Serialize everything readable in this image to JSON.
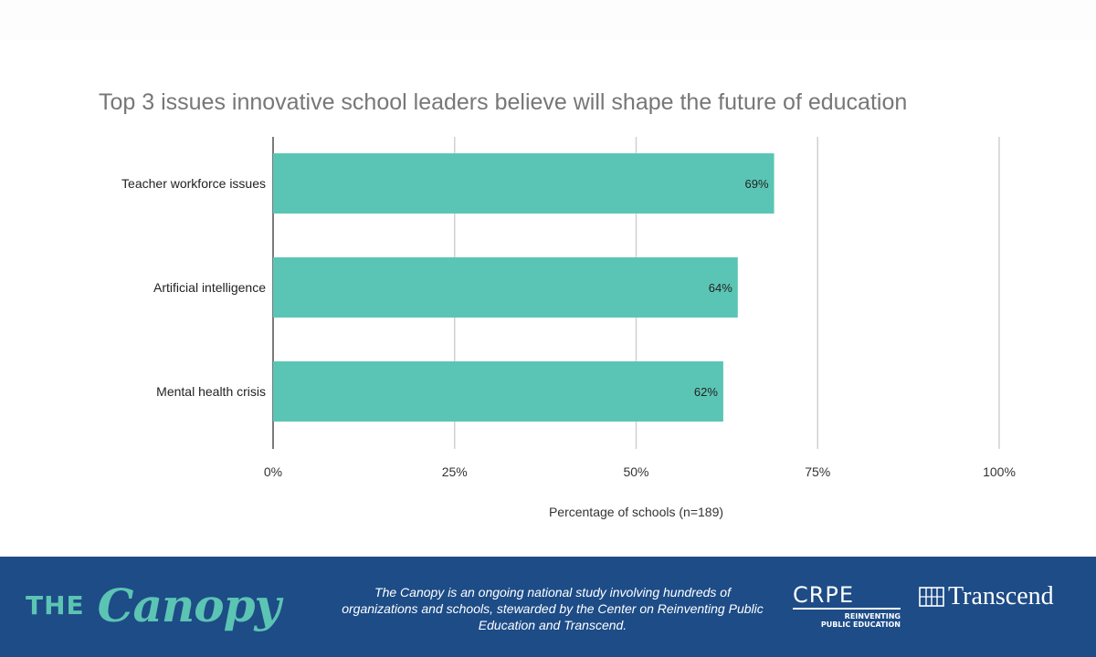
{
  "chart_data": {
    "type": "bar",
    "orientation": "horizontal",
    "title": "Top 3 issues innovative school leaders believe will shape the future of education",
    "categories": [
      "Teacher workforce issues",
      "Artificial intelligence",
      "Mental health crisis"
    ],
    "values": [
      69,
      64,
      62
    ],
    "data_labels": [
      "69%",
      "64%",
      "62%"
    ],
    "xlabel": "Percentage of schools (n=189)",
    "ylabel": "",
    "xlim": [
      0,
      100
    ],
    "xticks": [
      0,
      25,
      50,
      75,
      100
    ],
    "xtick_labels": [
      "0%",
      "25%",
      "50%",
      "75%",
      "100%"
    ],
    "grid": "vertical",
    "bar_color": "#5bc5b5",
    "grid_color": "#d0d0d0",
    "axis_color": "#222222"
  },
  "footer": {
    "logo_the": "THE",
    "logo_canopy": "Canopy",
    "description": "The Canopy is an ongoing national study involving hundreds of organizations and schools, stewarded by the Center on Reinventing Public Education and Transcend.",
    "crpe_name": "CRPE",
    "crpe_sub_line1": "REINVENTING",
    "crpe_sub_line2": "PUBLIC EDUCATION",
    "transcend_name": "Transcend",
    "bg_color": "#1d4c87",
    "accent_color": "#5cc4b3"
  }
}
